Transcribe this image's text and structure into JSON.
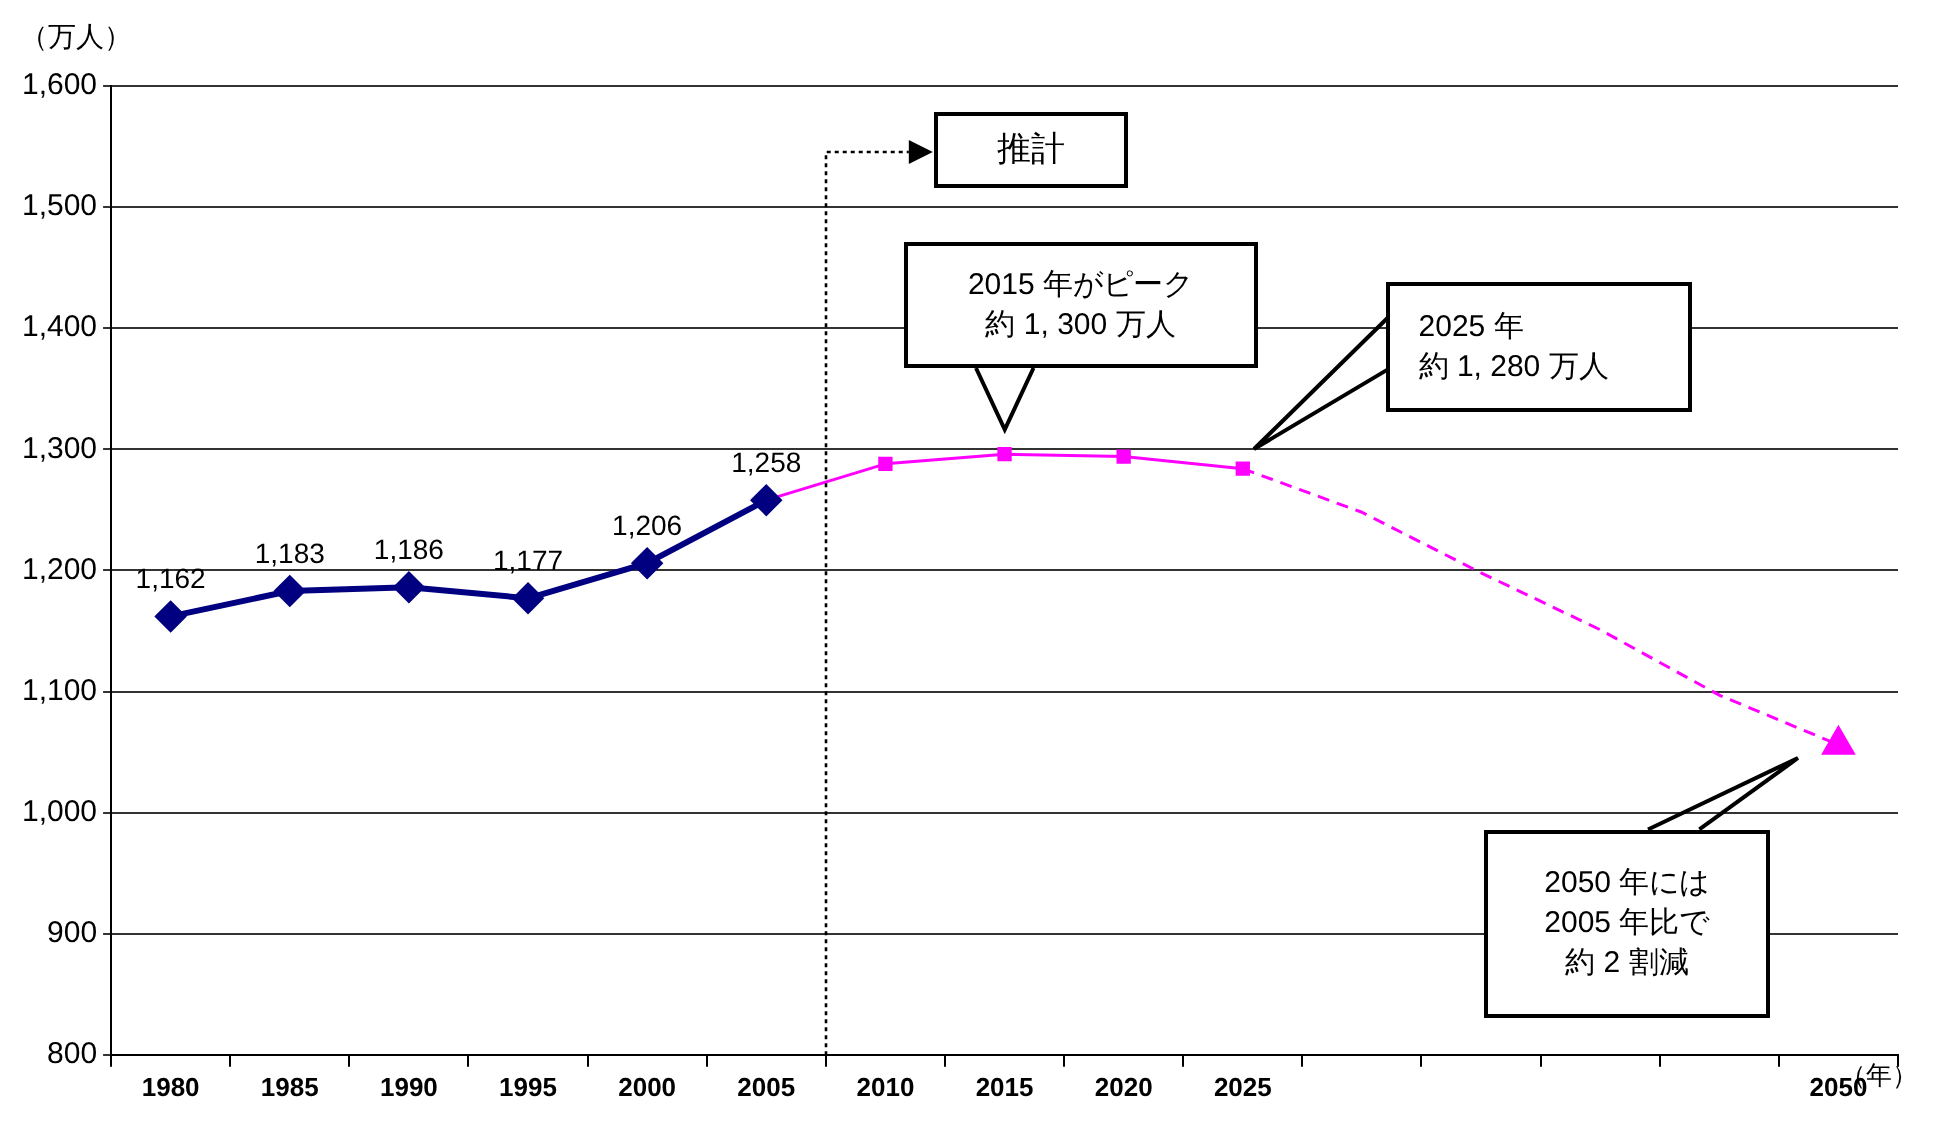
{
  "chart_data": {
    "type": "line",
    "xlabel": "（年）",
    "ylabel": "（万人）",
    "categories": [
      "1980",
      "1985",
      "1990",
      "1995",
      "2000",
      "2005",
      "2010",
      "2015",
      "2020",
      "2025",
      null,
      null,
      null,
      null,
      "2050"
    ],
    "series": [
      {
        "color": "#000080",
        "marker": "diamond",
        "line_style": "solid",
        "values": [
          1162,
          1183,
          1186,
          1177,
          1206,
          1258,
          null,
          null,
          null,
          null,
          null,
          null,
          null,
          null,
          null
        ],
        "value_labels": [
          "1,162",
          "1,183",
          "1,186",
          "1,177",
          "1,206",
          "1,258",
          null,
          null,
          null,
          null,
          null,
          null,
          null,
          null,
          null
        ]
      },
      {
        "color": "#ff00ff",
        "marker": "square",
        "line_style": "solid",
        "values": [
          null,
          null,
          null,
          null,
          null,
          1258,
          1288,
          1296,
          1294,
          1284,
          null,
          null,
          null,
          null,
          null
        ]
      },
      {
        "color": "#ff00ff",
        "marker": "none",
        "line_style": "dashed",
        "values": [
          null,
          null,
          null,
          null,
          null,
          null,
          null,
          null,
          null,
          1284,
          1248,
          1198,
          1151,
          1097,
          1056
        ]
      },
      {
        "type": "scatter",
        "color": "#ff00ff",
        "marker": "triangle",
        "values": [
          null,
          null,
          null,
          null,
          null,
          null,
          null,
          null,
          null,
          null,
          null,
          null,
          null,
          null,
          1056
        ]
      }
    ],
    "ylim": [
      800,
      1600
    ],
    "yticks": [
      {
        "value": 800,
        "label": "800"
      },
      {
        "value": 900,
        "label": "900"
      },
      {
        "value": 1000,
        "label": "1,000"
      },
      {
        "value": 1100,
        "label": "1,100"
      },
      {
        "value": 1200,
        "label": "1,200"
      },
      {
        "value": 1300,
        "label": "1,300"
      },
      {
        "value": 1400,
        "label": "1,400"
      },
      {
        "value": 1500,
        "label": "1,500"
      },
      {
        "value": 1600,
        "label": "1,600"
      }
    ],
    "grid": "y",
    "legend": false,
    "annotations": [
      "推計",
      "2015 年がピーク",
      "約 1, 300 万人",
      "2025 年",
      "約 1, 280 万人",
      "2050 年には",
      "2005 年比で",
      "約 2 割減"
    ]
  }
}
